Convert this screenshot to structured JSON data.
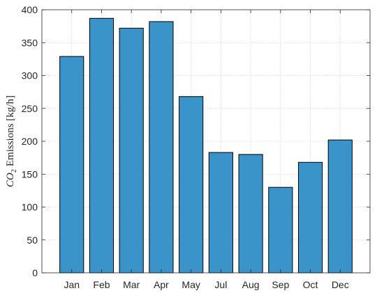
{
  "chart_data": {
    "type": "bar",
    "categories": [
      "Jan",
      "Feb",
      "Mar",
      "Apr",
      "May",
      "Jul",
      "Aug",
      "Sep",
      "Oct",
      "Dec"
    ],
    "values": [
      329,
      387,
      372,
      382,
      268,
      183,
      180,
      130,
      168,
      202
    ],
    "title": "",
    "xlabel": "",
    "ylabel": {
      "species": "CO",
      "subscript": "2",
      "text": "Emissions [kg/h]"
    },
    "ylim": [
      0,
      400
    ],
    "yticks": [
      0,
      50,
      100,
      150,
      200,
      250,
      300,
      350,
      400
    ],
    "grid": true,
    "bar_color": "#3a94c9",
    "edge_color": "#000000"
  }
}
